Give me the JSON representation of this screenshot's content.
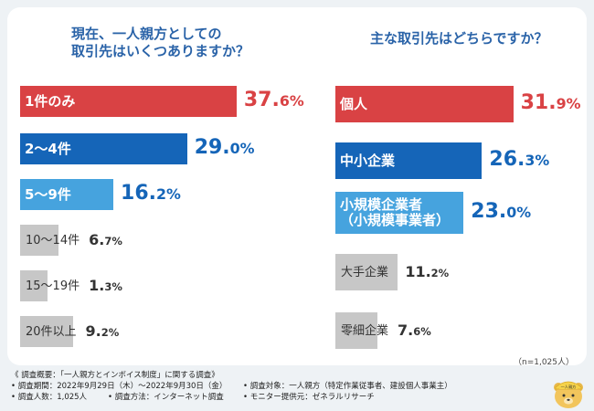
{
  "colors": {
    "red": "#d94244",
    "blue_dark": "#1565b8",
    "blue_light": "#46a3de",
    "gray": "#c7c7c7",
    "title_blue": "#2a63a8",
    "text_dark": "#333333"
  },
  "chart_data": [
    {
      "type": "bar",
      "orientation": "horizontal",
      "title": [
        "現在、一人親方としての",
        "取引先はいくつありますか？"
      ],
      "categories": [
        "1件のみ",
        "2〜4件",
        "5〜9件",
        "10〜14件",
        "15〜19件",
        "20件以上"
      ],
      "values": [
        37.6,
        29.0,
        16.2,
        6.7,
        1.3,
        9.2
      ],
      "value_labels": [
        {
          "int": "37.",
          "dec": "6%"
        },
        {
          "int": "29.",
          "dec": "0%"
        },
        {
          "int": "16.",
          "dec": "2%"
        },
        {
          "int": "6.",
          "dec": "7%"
        },
        {
          "int": "1.",
          "dec": "3%"
        },
        {
          "int": "9.",
          "dec": "2%"
        }
      ],
      "bar_colors": [
        "red",
        "blue_dark",
        "blue_light",
        "gray",
        "gray",
        "gray"
      ],
      "unit": "%"
    },
    {
      "type": "bar",
      "orientation": "horizontal",
      "title": [
        "主な取引先はどちらですか？"
      ],
      "categories": [
        "個人",
        "中小企業",
        "小規模企業者\n（小規模事業者）",
        "大手企業",
        "零細企業"
      ],
      "values": [
        31.9,
        26.3,
        23.0,
        11.2,
        7.6
      ],
      "value_labels": [
        {
          "int": "31.",
          "dec": "9%"
        },
        {
          "int": "26.",
          "dec": "3%"
        },
        {
          "int": "23.",
          "dec": "0%"
        },
        {
          "int": "11.",
          "dec": "2%"
        },
        {
          "int": "7.",
          "dec": "6%"
        }
      ],
      "bar_colors": [
        "red",
        "blue_dark",
        "blue_light",
        "gray",
        "gray"
      ],
      "unit": "%"
    }
  ],
  "sample_note": "（n=1,025人）",
  "footer": {
    "heading": "《 調査概要：「一人親方とインボイス制度」に関する調査》",
    "period": "• 調査期間：2022年9月29日（木）〜2022年9月30日（金）",
    "target": "• 調査対象：一人親方（特定作業従事者、建設個人事業主）",
    "count": "• 調査人数：1,025人",
    "method": "• 調査方法：インターネット調査",
    "provider": "• モニター提供元：ゼネラルリサーチ"
  },
  "mascot": {
    "label": "一人親方",
    "icon": "bear-mascot-icon"
  }
}
